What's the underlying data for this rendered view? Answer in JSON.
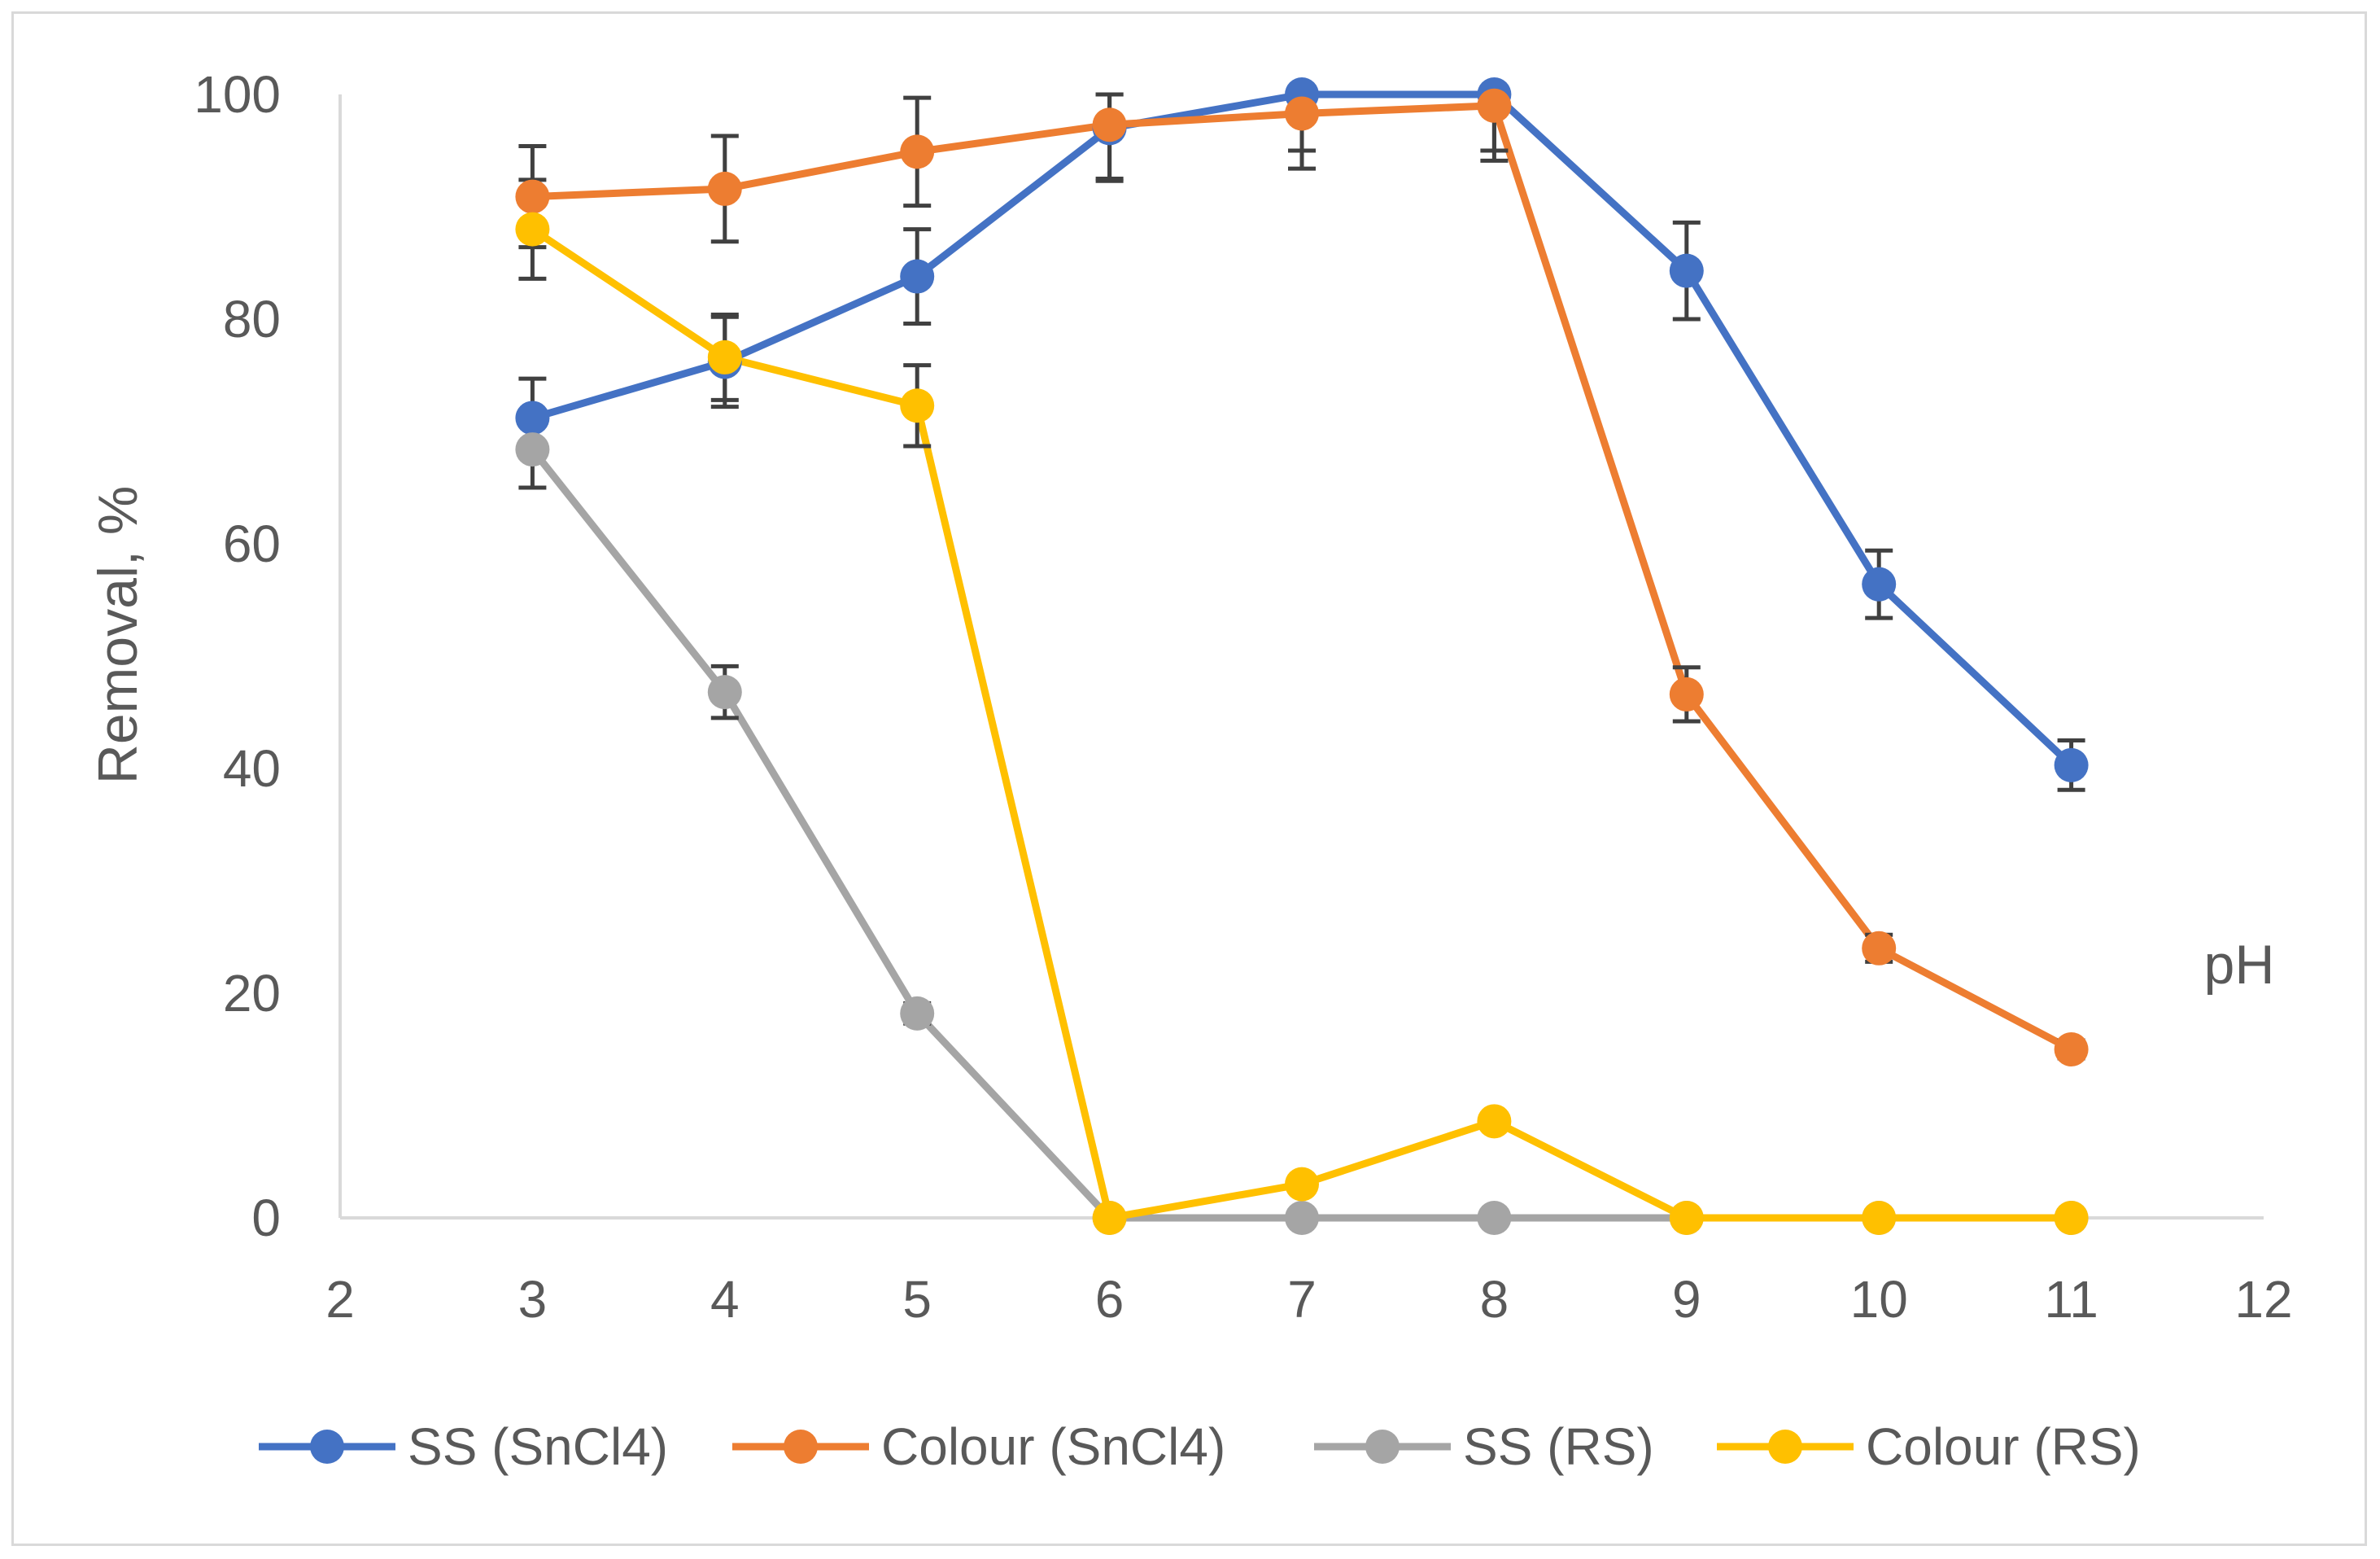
{
  "chart_data": {
    "type": "line",
    "title": "",
    "xlabel": "pH",
    "ylabel": "Removal, %",
    "xlim": [
      2,
      12
    ],
    "ylim": [
      0,
      100
    ],
    "x_ticks": [
      2,
      3,
      4,
      5,
      6,
      7,
      8,
      9,
      10,
      11,
      12
    ],
    "y_ticks": [
      0,
      20,
      40,
      60,
      80,
      100
    ],
    "grid": false,
    "legend_position": "bottom",
    "series": [
      {
        "name": "SS (SnCl4)",
        "color": "#4472c4",
        "x": [
          3,
          4,
          5,
          6,
          7,
          8,
          9,
          10,
          11
        ],
        "values": [
          71.2,
          76.2,
          83.8,
          97.0,
          100,
          100,
          84.3,
          56.4,
          40.3
        ],
        "error": [
          3.5,
          4.0,
          4.2,
          4.5,
          5.0,
          5.0,
          4.3,
          3.0,
          2.2
        ]
      },
      {
        "name": "Colour (SnCl4)",
        "color": "#ed7d31",
        "x": [
          3,
          4,
          5,
          6,
          7,
          8,
          9,
          10,
          11
        ],
        "values": [
          90.9,
          91.6,
          94.9,
          97.3,
          98.3,
          99.0,
          46.6,
          24.0,
          15.0
        ],
        "error": [
          4.5,
          4.7,
          4.8,
          5.0,
          4.9,
          4.9,
          2.4,
          1.2,
          0.8
        ]
      },
      {
        "name": "SS (RS)",
        "color": "#a5a5a5",
        "x": [
          3,
          4,
          5,
          6,
          7,
          8,
          9,
          10,
          11
        ],
        "values": [
          68.4,
          46.8,
          18.2,
          0,
          0,
          0,
          0,
          0,
          0
        ],
        "error": [
          3.4,
          2.3,
          0.9,
          0,
          0,
          0,
          0,
          0,
          0
        ]
      },
      {
        "name": "Colour (RS)",
        "color": "#ffc000",
        "x": [
          3,
          4,
          5,
          6,
          7,
          8,
          9,
          10,
          11
        ],
        "values": [
          88.0,
          76.6,
          72.3,
          0,
          3.0,
          8.6,
          0,
          0,
          0
        ],
        "error": [
          4.4,
          3.8,
          3.6,
          0,
          0.2,
          0.4,
          0,
          0,
          0
        ]
      }
    ]
  }
}
